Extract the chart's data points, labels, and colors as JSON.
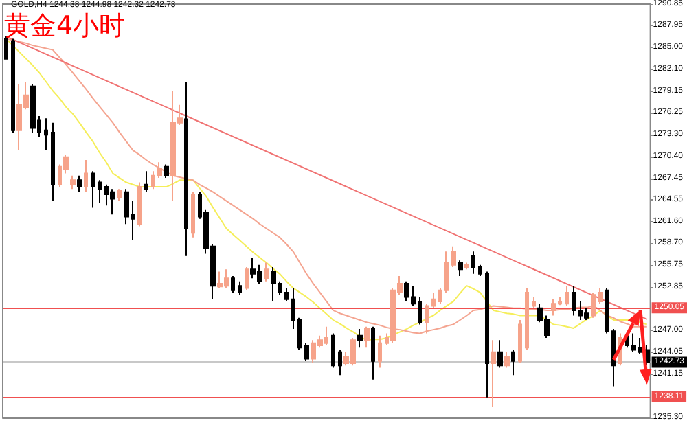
{
  "chart_data": {
    "type": "candlestick",
    "title": "黄金4小时",
    "annotations": [
      "GOLD,H4 1244.38 1244.98 1242.32 1242.73"
    ],
    "tick_labels": "y",
    "colors": [
      "#000000",
      "#000000",
      "#f6a38a",
      "#f6a38a",
      "#000000",
      "#000000",
      "#000000",
      "#000000",
      "#f6a38a",
      "#f6a38a",
      "#f6a38a",
      "#000000",
      "#f6a38a",
      "#000000",
      "#000000",
      "#000000",
      "#000000",
      "#f6a38a",
      "#000000",
      "#000000",
      "#f6a38a",
      "#000000",
      "#f6a38a",
      "#f6a38a",
      "#000000",
      "#f6a38a",
      "#f6a38a",
      "#000000",
      "#f6a38a",
      "#000000",
      "#000000",
      "#000000",
      "#f6a38a",
      "#f6a38a",
      "#000000",
      "#000000",
      "#f6a38a",
      "#000000",
      "#000000",
      "#f6a38a",
      "#000000",
      "#000000",
      "#000000",
      "#000000",
      "#000000",
      "#000000",
      "#f6a38a",
      "#f6a38a",
      "#f6a38a",
      "#000000",
      "#000000",
      "#f6a38a",
      "#f6a38a",
      "#000000",
      "#f6a38a",
      "#000000",
      "#f6a38a",
      "#f6a38a",
      "#f6a38a",
      "#f6a38a",
      "#000000",
      "#000000",
      "#000000",
      "#f6a38a",
      "#f6a38a",
      "#f6a38a",
      "#f6a38a",
      "#f6a38a",
      "#000000",
      "#f6a38a",
      "#000000",
      "#000000",
      "#000000",
      "#f6a38a",
      "#000000",
      "#f6a38a",
      "#000000",
      "#f6a38a",
      "#f6a38a",
      "#f6a38a",
      "#000000",
      "#000000",
      "#f6a38a",
      "#f6a38a",
      "#f6a38a",
      "#000000",
      "#000000",
      "#000000",
      "#f6a38a",
      "#f6a38a",
      "#000000",
      "#000000",
      "#f6a38a",
      "#000000",
      "#000000",
      "#000000",
      "#000000"
    ],
    "categories": [
      null,
      null,
      null,
      null,
      null,
      null,
      null,
      null,
      null,
      null,
      null,
      null,
      null,
      null,
      null,
      null,
      null,
      null,
      null,
      null,
      null,
      null,
      null,
      null,
      null,
      null,
      null,
      null,
      null,
      null,
      null,
      null,
      null,
      null,
      null,
      null,
      null,
      null,
      null,
      null,
      null,
      null,
      null,
      null,
      null,
      null,
      null,
      null,
      null,
      null,
      null,
      null,
      null,
      null,
      null,
      null,
      null,
      null,
      null,
      null,
      null,
      null,
      null,
      null,
      null,
      null,
      null,
      null,
      null,
      null,
      null,
      null,
      null,
      null,
      null,
      null,
      null,
      null,
      null,
      null,
      null,
      null,
      null,
      null,
      null,
      null,
      null,
      null,
      null,
      null,
      null,
      null,
      null,
      null,
      null,
      null,
      null
    ],
    "ohlc": [
      [
        1286.2,
        1286.6,
        1283.5,
        1283.5
      ],
      [
        1285.9,
        1286.2,
        1273.6,
        1273.9
      ],
      [
        1273.9,
        1280.1,
        1271.2,
        1277.3
      ],
      [
        1277.0,
        1280.4,
        1276.7,
        1278.6
      ],
      [
        1279.8,
        1280.1,
        1273.6,
        1274.2
      ],
      [
        1275.2,
        1275.8,
        1273.0,
        1273.6
      ],
      [
        1273.9,
        1275.5,
        1271.2,
        1273.3
      ],
      [
        1273.6,
        1274.9,
        1264.4,
        1266.6
      ],
      [
        1266.6,
        1269.3,
        1266.3,
        1269.0
      ],
      [
        1268.7,
        1270.6,
        1268.1,
        1270.3
      ],
      [
        1266.6,
        1267.8,
        1266.0,
        1267.2
      ],
      [
        1267.2,
        1267.8,
        1265.6,
        1266.3
      ],
      [
        1266.3,
        1269.9,
        1265.6,
        1268.1
      ],
      [
        1268.1,
        1268.4,
        1263.5,
        1266.3
      ],
      [
        1266.9,
        1267.2,
        1264.1,
        1266.0
      ],
      [
        1266.3,
        1266.6,
        1263.8,
        1265.3
      ],
      [
        1265.6,
        1266.0,
        1262.6,
        1264.7
      ],
      [
        1264.9,
        1266.0,
        1264.4,
        1265.8
      ],
      [
        1265.6,
        1266.0,
        1261.3,
        1262.3
      ],
      [
        1262.6,
        1264.4,
        1259.2,
        1262.0
      ],
      [
        1261.3,
        1266.9,
        1261.0,
        1266.3
      ],
      [
        1266.6,
        1268.4,
        1265.6,
        1266.0
      ],
      [
        1266.3,
        1268.4,
        1266.0,
        1267.8
      ],
      [
        1267.8,
        1269.6,
        1267.5,
        1268.8
      ],
      [
        1269.0,
        1269.3,
        1267.5,
        1267.8
      ],
      [
        1267.8,
        1279.2,
        1264.4,
        1274.9
      ],
      [
        1274.9,
        1277.3,
        1274.6,
        1275.5
      ],
      [
        1275.4,
        1280.4,
        1257.0,
        1260.7
      ],
      [
        1260.1,
        1265.6,
        1259.5,
        1265.3
      ],
      [
        1265.3,
        1265.6,
        1262.0,
        1262.3
      ],
      [
        1262.9,
        1263.2,
        1257.3,
        1258.0
      ],
      [
        1258.3,
        1258.6,
        1251.2,
        1253.0
      ],
      [
        1252.9,
        1254.9,
        1252.7,
        1253.3
      ],
      [
        1253.0,
        1255.2,
        1252.7,
        1254.0
      ],
      [
        1254.0,
        1254.3,
        1252.1,
        1252.4
      ],
      [
        1253.0,
        1253.6,
        1251.8,
        1252.1
      ],
      [
        1252.7,
        1255.5,
        1252.4,
        1255.2
      ],
      [
        1255.2,
        1256.7,
        1254.0,
        1254.6
      ],
      [
        1254.9,
        1255.8,
        1253.3,
        1253.6
      ],
      [
        1254.0,
        1256.1,
        1253.6,
        1255.2
      ],
      [
        1254.9,
        1255.5,
        1250.9,
        1253.3
      ],
      [
        1253.3,
        1253.6,
        1251.8,
        1252.1
      ],
      [
        1252.1,
        1252.7,
        1250.9,
        1251.2
      ],
      [
        1251.2,
        1252.7,
        1247.2,
        1248.4
      ],
      [
        1248.4,
        1248.7,
        1244.4,
        1244.7
      ],
      [
        1245.0,
        1245.3,
        1242.9,
        1243.2
      ],
      [
        1243.2,
        1245.7,
        1242.6,
        1245.3
      ],
      [
        1245.0,
        1246.3,
        1244.7,
        1245.7
      ],
      [
        1245.3,
        1247.5,
        1245.0,
        1246.0
      ],
      [
        1246.3,
        1246.6,
        1242.0,
        1242.3
      ],
      [
        1244.1,
        1244.4,
        1241.0,
        1242.3
      ],
      [
        1242.6,
        1244.1,
        1242.3,
        1243.5
      ],
      [
        1242.6,
        1246.0,
        1242.3,
        1245.7
      ],
      [
        1246.3,
        1247.2,
        1244.7,
        1245.7
      ],
      [
        1245.7,
        1247.5,
        1244.7,
        1247.2
      ],
      [
        1247.2,
        1247.5,
        1240.4,
        1242.9
      ],
      [
        1242.9,
        1246.3,
        1242.0,
        1245.3
      ],
      [
        1245.3,
        1246.6,
        1245.0,
        1246.0
      ],
      [
        1245.7,
        1252.7,
        1245.3,
        1252.4
      ],
      [
        1252.1,
        1254.3,
        1251.8,
        1253.3
      ],
      [
        1253.3,
        1253.6,
        1250.9,
        1251.5
      ],
      [
        1251.5,
        1253.0,
        1250.3,
        1250.6
      ],
      [
        1250.9,
        1251.5,
        1247.8,
        1248.1
      ],
      [
        1248.1,
        1250.6,
        1246.6,
        1250.3
      ],
      [
        1250.3,
        1252.1,
        1250.0,
        1251.2
      ],
      [
        1250.9,
        1252.7,
        1250.6,
        1252.4
      ],
      [
        1252.4,
        1257.6,
        1252.1,
        1256.1
      ],
      [
        1255.8,
        1258.3,
        1255.5,
        1257.6
      ],
      [
        1256.1,
        1256.4,
        1254.3,
        1255.2
      ],
      [
        1255.5,
        1256.1,
        1255.2,
        1255.8
      ],
      [
        1257.0,
        1257.6,
        1254.6,
        1255.5
      ],
      [
        1255.5,
        1255.8,
        1254.3,
        1254.6
      ],
      [
        1254.6,
        1254.9,
        1238.0,
        1242.6
      ],
      [
        1242.6,
        1245.7,
        1236.7,
        1244.1
      ],
      [
        1244.1,
        1245.7,
        1242.0,
        1242.3
      ],
      [
        1242.3,
        1244.1,
        1242.0,
        1243.5
      ],
      [
        1244.1,
        1244.4,
        1241.0,
        1242.9
      ],
      [
        1242.9,
        1248.4,
        1242.6,
        1247.8
      ],
      [
        1244.7,
        1252.7,
        1244.4,
        1252.1
      ],
      [
        1250.3,
        1251.5,
        1250.0,
        1250.9
      ],
      [
        1250.0,
        1250.6,
        1248.1,
        1248.4
      ],
      [
        1248.4,
        1249.0,
        1246.0,
        1246.3
      ],
      [
        1249.7,
        1251.2,
        1249.0,
        1250.6
      ],
      [
        1250.6,
        1251.5,
        1250.4,
        1250.9
      ],
      [
        1250.6,
        1253.0,
        1250.3,
        1252.1
      ],
      [
        1252.1,
        1253.0,
        1249.0,
        1249.7
      ],
      [
        1249.7,
        1250.9,
        1248.4,
        1249.0
      ],
      [
        1249.3,
        1250.0,
        1248.4,
        1248.7
      ],
      [
        1249.0,
        1252.1,
        1248.7,
        1251.8
      ],
      [
        1250.9,
        1252.7,
        1250.6,
        1252.1
      ],
      [
        1252.4,
        1252.7,
        1246.6,
        1246.9
      ],
      [
        1246.9,
        1247.2,
        1239.5,
        1242.3
      ],
      [
        1242.6,
        1246.6,
        1242.3,
        1246.0
      ],
      [
        1246.3,
        1246.6,
        1244.7,
        1245.0
      ],
      [
        1245.0,
        1246.6,
        1244.1,
        1244.4
      ],
      [
        1244.7,
        1246.0,
        1243.8,
        1244.1
      ],
      [
        1244.38,
        1244.98,
        1242.32,
        1242.73
      ]
    ],
    "series": [
      {
        "type": "line",
        "color": "#f5ee5a",
        "values": [
          1286.2,
          1285.3,
          1284.4,
          1283.5,
          1282.6,
          1281.6,
          1280.4,
          1279.2,
          1278.2,
          1277.0,
          1276.1,
          1274.9,
          1273.6,
          1272.4,
          1270.9,
          1269.6,
          1268.1,
          1267.5,
          1266.9,
          1266.6,
          1266.3,
          1266.3,
          1266.3,
          1266.3,
          1266.3,
          1266.7,
          1267.2,
          1267.2,
          1267.2,
          1266.1,
          1265.0,
          1263.5,
          1262.1,
          1260.7,
          1259.9,
          1259.1,
          1258.3,
          1257.5,
          1256.8,
          1256.1,
          1255.3,
          1254.6,
          1253.6,
          1252.7,
          1252.1,
          1251.5,
          1250.8,
          1250.0,
          1249.2,
          1248.4,
          1247.9,
          1247.3,
          1246.8,
          1246.2,
          1245.7,
          1245.8,
          1245.8,
          1246.0,
          1246.4,
          1246.8,
          1247.2,
          1247.7,
          1248.1,
          1248.6,
          1249.0,
          1249.7,
          1250.3,
          1250.9,
          1252.0,
          1253.0,
          1252.6,
          1252.1,
          1250.9,
          1249.7,
          1249.5,
          1249.3,
          1249.2,
          1249.0,
          1249.0,
          1249.0,
          1249.0,
          1248.4,
          1247.8,
          1247.7,
          1247.5,
          1247.3,
          1247.9,
          1248.5,
          1249.0,
          1249.7,
          1249.0,
          1248.4,
          1248.4,
          1248.4,
          1248.4,
          1248.1,
          1247.8
        ]
      },
      {
        "type": "line",
        "color": "#f4a490",
        "values": [
          1286.2,
          1286.0,
          1285.8,
          1285.6,
          1285.3,
          1285.1,
          1284.9,
          1284.7,
          1283.7,
          1282.7,
          1281.6,
          1280.5,
          1279.4,
          1278.2,
          1277.1,
          1276.0,
          1274.9,
          1273.6,
          1272.4,
          1271.2,
          1270.6,
          1269.9,
          1269.3,
          1268.8,
          1268.3,
          1267.8,
          1267.6,
          1267.4,
          1267.2,
          1266.6,
          1266.1,
          1265.6,
          1265.0,
          1264.4,
          1263.8,
          1263.2,
          1262.6,
          1262.0,
          1261.3,
          1260.7,
          1260.1,
          1259.5,
          1258.6,
          1257.6,
          1256.1,
          1254.6,
          1253.3,
          1252.1,
          1250.9,
          1249.7,
          1249.3,
          1249.0,
          1248.7,
          1248.4,
          1248.1,
          1247.9,
          1247.7,
          1247.4,
          1247.2,
          1247.1,
          1246.9,
          1246.7,
          1246.6,
          1246.9,
          1247.1,
          1247.3,
          1247.6,
          1247.8,
          1248.4,
          1249.0,
          1249.7,
          1249.8,
          1250.1,
          1250.3,
          1250.2,
          1250.1,
          1250.0,
          1250.0,
          1249.9,
          1249.8,
          1249.8,
          1249.7,
          1249.7,
          1249.8,
          1249.8,
          1250.0,
          1250.1,
          1250.1,
          1250.3,
          1249.7,
          1249.0,
          1248.7,
          1248.2,
          1247.9,
          1247.5,
          1247.5,
          1247.5
        ]
      },
      {
        "type": "line",
        "color": "#f07272",
        "values": [
          1286.5,
          null,
          null,
          null,
          null,
          null,
          null,
          null,
          null,
          null,
          null,
          null,
          null,
          null,
          null,
          null,
          null,
          null,
          null,
          null,
          null,
          null,
          null,
          null,
          null,
          null,
          null,
          null,
          null,
          null,
          null,
          null,
          null,
          null,
          null,
          null,
          null,
          null,
          null,
          null,
          null,
          null,
          null,
          null,
          null,
          null,
          null,
          null,
          null,
          null,
          null,
          null,
          null,
          null,
          null,
          null,
          null,
          null,
          null,
          null,
          null,
          null,
          null,
          null,
          null,
          null,
          null,
          null,
          null,
          null,
          null,
          null,
          null,
          null,
          null,
          null,
          null,
          null,
          null,
          null,
          null,
          null,
          null,
          null,
          null,
          null,
          null,
          null,
          null,
          null,
          null,
          null,
          null,
          null,
          null,
          null,
          1248.5
        ]
      }
    ],
    "ylim": [
      1235.3,
      1290.85
    ],
    "yticks": [
      {
        "value": 1290.85,
        "label": "1290.85"
      },
      {
        "value": 1287.95,
        "label": "1287.95"
      },
      {
        "value": 1285,
        "label": "1285.00"
      },
      {
        "value": 1282.1,
        "label": "1282.10"
      },
      {
        "value": 1279.15,
        "label": "1279.15"
      },
      {
        "value": 1276.25,
        "label": "1276.25"
      },
      {
        "value": 1273.3,
        "label": "1273.30"
      },
      {
        "value": 1270.4,
        "label": "1270.40"
      },
      {
        "value": 1267.45,
        "label": "1267.45"
      },
      {
        "value": 1264.55,
        "label": "1264.55"
      },
      {
        "value": 1261.6,
        "label": "1261.60"
      },
      {
        "value": 1258.7,
        "label": "1258.70"
      },
      {
        "value": 1255.75,
        "label": "1255.75"
      },
      {
        "value": 1252.85,
        "label": "1252.85"
      },
      {
        "value": 1247,
        "label": "1247.00"
      },
      {
        "value": 1244.05,
        "label": "1244.05"
      },
      {
        "value": 1241.15,
        "label": "1241.15"
      },
      {
        "value": 1235.3,
        "label": "1235.30"
      }
    ],
    "ref_lines": [
      {
        "axis": "y",
        "value": 1250.05,
        "label": "1250.05",
        "color": "#f05050"
      },
      {
        "axis": "y",
        "value": 1242.73,
        "label": "1242.73",
        "color": "#c8c8c8"
      },
      {
        "axis": "y",
        "value": 1238.11,
        "label": "1238.11",
        "color": "#f05050"
      }
    ]
  }
}
